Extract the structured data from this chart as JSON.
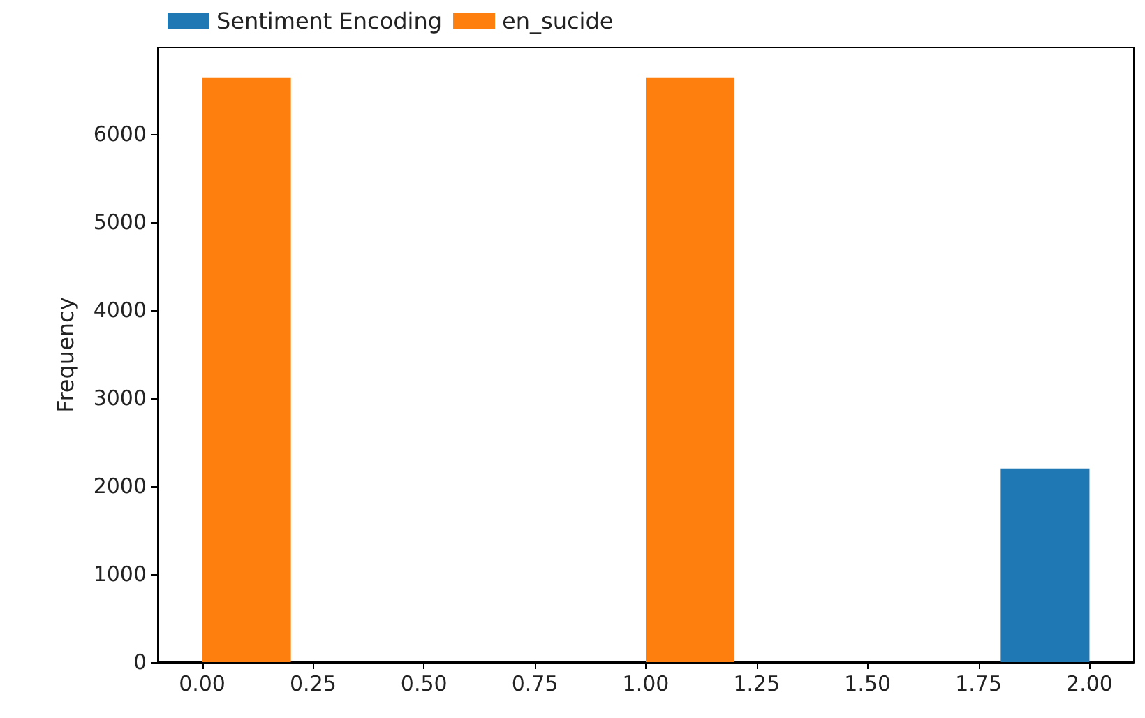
{
  "chart_data": {
    "type": "histogram",
    "ylabel": "Frequency",
    "bins": [
      0,
      0.2,
      0.4,
      0.6,
      0.8,
      1.0,
      1.2,
      1.4,
      1.6,
      1.8,
      2.0
    ],
    "series": [
      {
        "name": "Sentiment Encoding",
        "color": "#1f77b4",
        "values": [
          null,
          0,
          0,
          0,
          0,
          null,
          0,
          0,
          0,
          2200
        ]
      },
      {
        "name": "en_sucide",
        "color": "#ff7f0e",
        "values": [
          6640,
          0,
          0,
          0,
          0,
          6640,
          0,
          0,
          0,
          0
        ]
      }
    ],
    "xlim": [
      -0.1,
      2.1
    ],
    "xticks": [
      {
        "value": 0,
        "label": "0.00"
      },
      {
        "value": 0.25,
        "label": "0.25"
      },
      {
        "value": 0.5,
        "label": "0.50"
      },
      {
        "value": 0.75,
        "label": "0.75"
      },
      {
        "value": 1,
        "label": "1.00"
      },
      {
        "value": 1.25,
        "label": "1.25"
      },
      {
        "value": 1.5,
        "label": "1.50"
      },
      {
        "value": 1.75,
        "label": "1.75"
      },
      {
        "value": 2,
        "label": "2.00"
      }
    ],
    "ylim": [
      0,
      6980
    ],
    "yticks": [
      0,
      1000,
      2000,
      3000,
      4000,
      5000,
      6000
    ],
    "grid": false,
    "legend": "top left"
  }
}
